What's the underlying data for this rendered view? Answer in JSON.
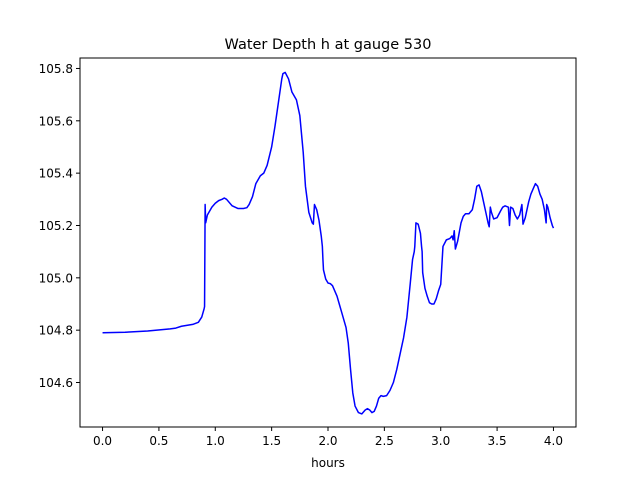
{
  "chart_data": {
    "type": "line",
    "title": "Water Depth h at gauge 530",
    "xlabel": "hours",
    "ylabel": "",
    "xlim": [
      -0.2,
      4.2
    ],
    "ylim": [
      104.43,
      105.84
    ],
    "xticks": [
      0.0,
      0.5,
      1.0,
      1.5,
      2.0,
      2.5,
      3.0,
      3.5,
      4.0
    ],
    "xtick_labels": [
      "0.0",
      "0.5",
      "1.0",
      "1.5",
      "2.0",
      "2.5",
      "3.0",
      "3.5",
      "4.0"
    ],
    "yticks": [
      104.6,
      104.8,
      105.0,
      105.2,
      105.4,
      105.6,
      105.8
    ],
    "ytick_labels": [
      "104.6",
      "104.8",
      "105.0",
      "105.2",
      "105.4",
      "105.6",
      "105.8"
    ],
    "grid": false,
    "legend": "none",
    "series": [
      {
        "color": "#0000ff",
        "x": [
          0.0,
          0.2,
          0.4,
          0.6,
          0.65,
          0.7,
          0.8,
          0.85,
          0.88,
          0.9,
          0.905,
          0.91,
          0.915,
          0.93,
          0.97,
          1.0,
          1.03,
          1.06,
          1.08,
          1.1,
          1.15,
          1.2,
          1.25,
          1.28,
          1.3,
          1.33,
          1.36,
          1.4,
          1.43,
          1.46,
          1.5,
          1.53,
          1.56,
          1.59,
          1.6,
          1.62,
          1.65,
          1.68,
          1.72,
          1.75,
          1.78,
          1.8,
          1.83,
          1.86,
          1.87,
          1.88,
          1.9,
          1.92,
          1.94,
          1.95,
          1.955,
          1.96,
          1.98,
          2.0,
          2.02,
          2.04,
          2.06,
          2.08,
          2.1,
          2.12,
          2.14,
          2.16,
          2.18,
          2.2,
          2.22,
          2.24,
          2.27,
          2.3,
          2.33,
          2.35,
          2.37,
          2.39,
          2.41,
          2.43,
          2.45,
          2.47,
          2.49,
          2.52,
          2.55,
          2.58,
          2.61,
          2.64,
          2.67,
          2.7,
          2.73,
          2.75,
          2.765,
          2.77,
          2.78,
          2.8,
          2.82,
          2.83,
          2.835,
          2.84,
          2.86,
          2.88,
          2.9,
          2.92,
          2.94,
          2.96,
          2.98,
          3.0,
          3.02,
          3.05,
          3.08,
          3.1,
          3.11,
          3.12,
          3.13,
          3.15,
          3.18,
          3.2,
          3.22,
          3.25,
          3.28,
          3.3,
          3.32,
          3.34,
          3.36,
          3.38,
          3.4,
          3.42,
          3.43,
          3.44,
          3.45,
          3.47,
          3.5,
          3.53,
          3.55,
          3.57,
          3.6,
          3.61,
          3.62,
          3.64,
          3.66,
          3.68,
          3.7,
          3.72,
          3.73,
          3.75,
          3.78,
          3.8,
          3.82,
          3.84,
          3.86,
          3.88,
          3.9,
          3.92,
          3.935,
          3.94,
          3.95,
          3.97,
          3.99,
          4.0
        ],
        "y": [
          104.79,
          104.792,
          104.797,
          104.805,
          104.808,
          104.815,
          104.822,
          104.83,
          104.85,
          104.88,
          104.89,
          105.28,
          105.21,
          105.24,
          105.27,
          105.285,
          105.295,
          105.3,
          105.305,
          105.3,
          105.275,
          105.265,
          105.265,
          105.268,
          105.28,
          105.31,
          105.36,
          105.39,
          105.4,
          105.43,
          105.5,
          105.58,
          105.67,
          105.76,
          105.78,
          105.785,
          105.76,
          105.71,
          105.68,
          105.62,
          105.48,
          105.35,
          105.25,
          105.21,
          105.205,
          105.28,
          105.26,
          105.22,
          105.16,
          105.12,
          105.07,
          105.03,
          104.995,
          104.98,
          104.978,
          104.97,
          104.95,
          104.93,
          104.9,
          104.87,
          104.84,
          104.81,
          104.75,
          104.65,
          104.56,
          104.51,
          104.485,
          104.48,
          104.495,
          104.5,
          104.495,
          104.485,
          104.49,
          104.51,
          104.54,
          104.55,
          104.547,
          104.55,
          104.57,
          104.6,
          104.65,
          104.71,
          104.77,
          104.85,
          104.98,
          105.07,
          105.1,
          105.12,
          105.21,
          105.205,
          105.17,
          105.12,
          105.1,
          105.02,
          104.96,
          104.93,
          104.905,
          104.9,
          104.9,
          104.92,
          104.95,
          104.975,
          105.12,
          105.145,
          105.15,
          105.16,
          105.145,
          105.18,
          105.11,
          105.14,
          105.21,
          105.235,
          105.245,
          105.245,
          105.26,
          105.3,
          105.35,
          105.355,
          105.33,
          105.29,
          105.25,
          105.21,
          105.195,
          105.27,
          105.25,
          105.225,
          105.23,
          105.255,
          105.27,
          105.275,
          105.27,
          105.2,
          105.27,
          105.265,
          105.24,
          105.225,
          105.24,
          105.28,
          105.205,
          105.23,
          105.29,
          105.32,
          105.34,
          105.36,
          105.35,
          105.32,
          105.3,
          105.26,
          105.21,
          105.28,
          105.27,
          105.23,
          105.2,
          105.19
        ]
      }
    ]
  }
}
